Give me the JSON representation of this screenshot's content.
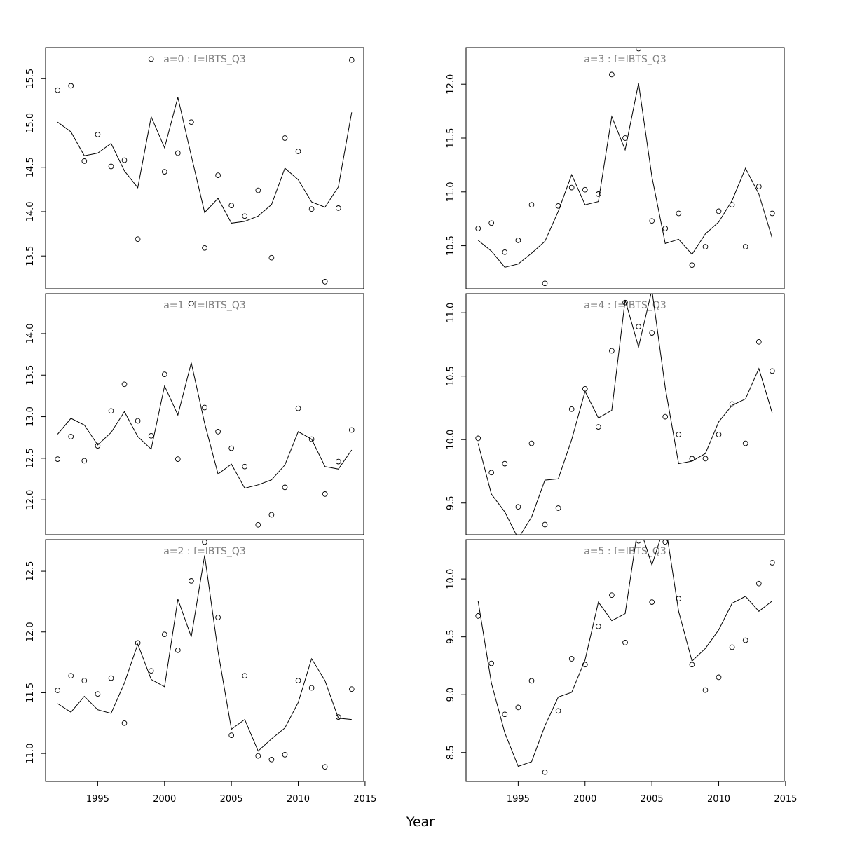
{
  "xlabel": "Year",
  "chart_data": [
    {
      "type": "scatter",
      "title": "a=0  :  f=IBTS_Q3",
      "x": [
        1992,
        1993,
        1994,
        1995,
        1996,
        1997,
        1998,
        1999,
        2000,
        2001,
        2002,
        2003,
        2004,
        2005,
        2006,
        2007,
        2008,
        2009,
        2010,
        2011,
        2012,
        2013,
        2014
      ],
      "series": [
        {
          "kind": "points",
          "values": [
            15.37,
            15.42,
            14.57,
            14.87,
            14.51,
            14.58,
            13.69,
            15.72,
            14.45,
            14.66,
            15.01,
            13.59,
            14.41,
            14.07,
            13.95,
            14.24,
            13.48,
            14.83,
            14.68,
            14.03,
            13.21,
            14.04,
            15.71
          ]
        },
        {
          "kind": "line",
          "values": [
            15.01,
            14.9,
            14.63,
            14.66,
            14.77,
            14.46,
            14.27,
            15.07,
            14.72,
            15.29,
            14.63,
            13.99,
            14.15,
            13.87,
            13.89,
            13.95,
            14.08,
            14.49,
            14.36,
            14.11,
            14.05,
            14.28,
            15.12
          ]
        }
      ],
      "yticks": [
        13.5,
        14.0,
        14.5,
        15.0,
        15.5
      ],
      "ylim": [
        13.13,
        15.85
      ],
      "xlim": [
        1991.1,
        2014.9
      ],
      "xticks": []
    },
    {
      "type": "scatter",
      "title": "a=3  :  f=IBTS_Q3",
      "x": [
        1992,
        1993,
        1994,
        1995,
        1996,
        1997,
        1998,
        1999,
        2000,
        2001,
        2002,
        2003,
        2004,
        2005,
        2006,
        2007,
        2008,
        2009,
        2010,
        2011,
        2012,
        2013,
        2014
      ],
      "series": [
        {
          "kind": "points",
          "values": [
            10.66,
            10.71,
            10.44,
            10.55,
            10.88,
            10.15,
            10.87,
            11.04,
            11.02,
            10.98,
            12.09,
            11.5,
            12.33,
            10.73,
            10.66,
            10.8,
            10.32,
            10.49,
            10.82,
            10.88,
            10.49,
            11.05,
            10.8
          ]
        },
        {
          "kind": "line",
          "values": [
            10.55,
            10.45,
            10.3,
            10.33,
            10.43,
            10.54,
            10.82,
            11.16,
            10.88,
            10.91,
            11.7,
            11.39,
            12.01,
            11.14,
            10.52,
            10.56,
            10.42,
            10.61,
            10.72,
            10.92,
            11.22,
            10.98,
            10.57
          ]
        }
      ],
      "yticks": [
        10.5,
        11.0,
        11.5,
        12.0
      ],
      "ylim": [
        10.1,
        12.34
      ],
      "xlim": [
        1991.1,
        2014.9
      ],
      "xticks": []
    },
    {
      "type": "scatter",
      "title": "a=1  :  f=IBTS_Q3",
      "x": [
        1992,
        1993,
        1994,
        1995,
        1996,
        1997,
        1998,
        1999,
        2000,
        2001,
        2002,
        2003,
        2004,
        2005,
        2006,
        2007,
        2008,
        2009,
        2010,
        2011,
        2012,
        2013,
        2014
      ],
      "series": [
        {
          "kind": "points",
          "values": [
            12.49,
            12.76,
            12.47,
            12.65,
            13.07,
            13.39,
            12.95,
            12.77,
            13.51,
            12.49,
            14.36,
            13.11,
            12.82,
            12.62,
            12.4,
            11.7,
            11.82,
            12.15,
            13.1,
            12.73,
            12.07,
            12.46,
            12.84
          ]
        },
        {
          "kind": "line",
          "values": [
            12.79,
            12.98,
            12.9,
            12.66,
            12.81,
            13.06,
            12.76,
            12.61,
            13.37,
            13.02,
            13.65,
            12.92,
            12.31,
            12.43,
            12.14,
            12.18,
            12.24,
            12.42,
            12.82,
            12.73,
            12.4,
            12.37,
            12.6
          ]
        }
      ],
      "yticks": [
        12.0,
        12.5,
        13.0,
        13.5,
        14.0
      ],
      "ylim": [
        11.58,
        14.48
      ],
      "xlim": [
        1991.1,
        2014.9
      ],
      "xticks": []
    },
    {
      "type": "scatter",
      "title": "a=4  :  f=IBTS_Q3",
      "x": [
        1992,
        1993,
        1994,
        1995,
        1996,
        1997,
        1998,
        1999,
        2000,
        2001,
        2002,
        2003,
        2004,
        2005,
        2006,
        2007,
        2008,
        2009,
        2010,
        2011,
        2012,
        2013,
        2014
      ],
      "series": [
        {
          "kind": "points",
          "values": [
            10.01,
            9.74,
            9.81,
            9.47,
            9.97,
            9.33,
            9.46,
            10.24,
            10.4,
            10.1,
            10.7,
            11.08,
            10.89,
            10.84,
            10.18,
            10.04,
            9.85,
            9.85,
            10.04,
            10.28,
            9.97,
            10.77,
            10.54
          ]
        },
        {
          "kind": "line",
          "values": [
            9.97,
            9.57,
            9.43,
            9.22,
            9.39,
            9.68,
            9.69,
            10.0,
            10.38,
            10.17,
            10.23,
            11.1,
            10.73,
            11.18,
            10.41,
            9.81,
            9.83,
            9.89,
            10.14,
            10.27,
            10.32,
            10.56,
            10.21
          ]
        }
      ],
      "yticks": [
        9.5,
        10.0,
        10.5,
        11.0
      ],
      "ylim": [
        9.25,
        11.15
      ],
      "xlim": [
        1991.1,
        2014.9
      ],
      "xticks": []
    },
    {
      "type": "scatter",
      "title": "a=2  :  f=IBTS_Q3",
      "x": [
        1992,
        1993,
        1994,
        1995,
        1996,
        1997,
        1998,
        1999,
        2000,
        2001,
        2002,
        2003,
        2004,
        2005,
        2006,
        2007,
        2008,
        2009,
        2010,
        2011,
        2012,
        2013,
        2014
      ],
      "series": [
        {
          "kind": "points",
          "values": [
            11.52,
            11.64,
            11.6,
            11.49,
            11.62,
            11.25,
            11.91,
            11.68,
            11.98,
            11.85,
            12.42,
            12.74,
            12.12,
            11.15,
            11.64,
            10.98,
            10.95,
            10.99,
            11.6,
            11.54,
            10.89,
            11.3,
            11.53
          ]
        },
        {
          "kind": "line",
          "values": [
            11.41,
            11.34,
            11.47,
            11.36,
            11.33,
            11.58,
            11.9,
            11.61,
            11.55,
            12.27,
            11.96,
            12.63,
            11.84,
            11.2,
            11.28,
            11.02,
            11.12,
            11.21,
            11.42,
            11.78,
            11.6,
            11.29,
            11.28
          ]
        }
      ],
      "yticks": [
        11.0,
        11.5,
        12.0,
        12.5
      ],
      "ylim": [
        10.77,
        12.76
      ],
      "xlim": [
        1991.1,
        2014.9
      ],
      "xticks": [
        1995,
        2000,
        2005,
        2010,
        2015
      ]
    },
    {
      "type": "scatter",
      "title": "a=5  :  f=IBTS_Q3",
      "x": [
        1992,
        1993,
        1994,
        1995,
        1996,
        1997,
        1998,
        1999,
        2000,
        2001,
        2002,
        2003,
        2004,
        2005,
        2006,
        2007,
        2008,
        2009,
        2010,
        2011,
        2012,
        2013,
        2014
      ],
      "series": [
        {
          "kind": "points",
          "values": [
            9.68,
            9.27,
            8.83,
            8.89,
            9.12,
            8.33,
            8.86,
            9.31,
            9.26,
            9.59,
            9.86,
            9.45,
            10.33,
            9.8,
            10.32,
            9.83,
            9.26,
            9.04,
            9.15,
            9.41,
            9.47,
            9.96,
            10.14
          ]
        },
        {
          "kind": "line",
          "values": [
            9.81,
            9.1,
            8.67,
            8.38,
            8.42,
            8.73,
            8.98,
            9.02,
            9.3,
            9.8,
            9.64,
            9.7,
            10.48,
            10.12,
            10.48,
            9.72,
            9.29,
            9.4,
            9.56,
            9.79,
            9.85,
            9.72,
            9.81
          ]
        }
      ],
      "yticks": [
        8.5,
        9.0,
        9.5,
        10.0
      ],
      "ylim": [
        8.25,
        10.34
      ],
      "xlim": [
        1991.1,
        2014.9
      ],
      "xticks": [
        1995,
        2000,
        2005,
        2010,
        2015
      ]
    }
  ]
}
